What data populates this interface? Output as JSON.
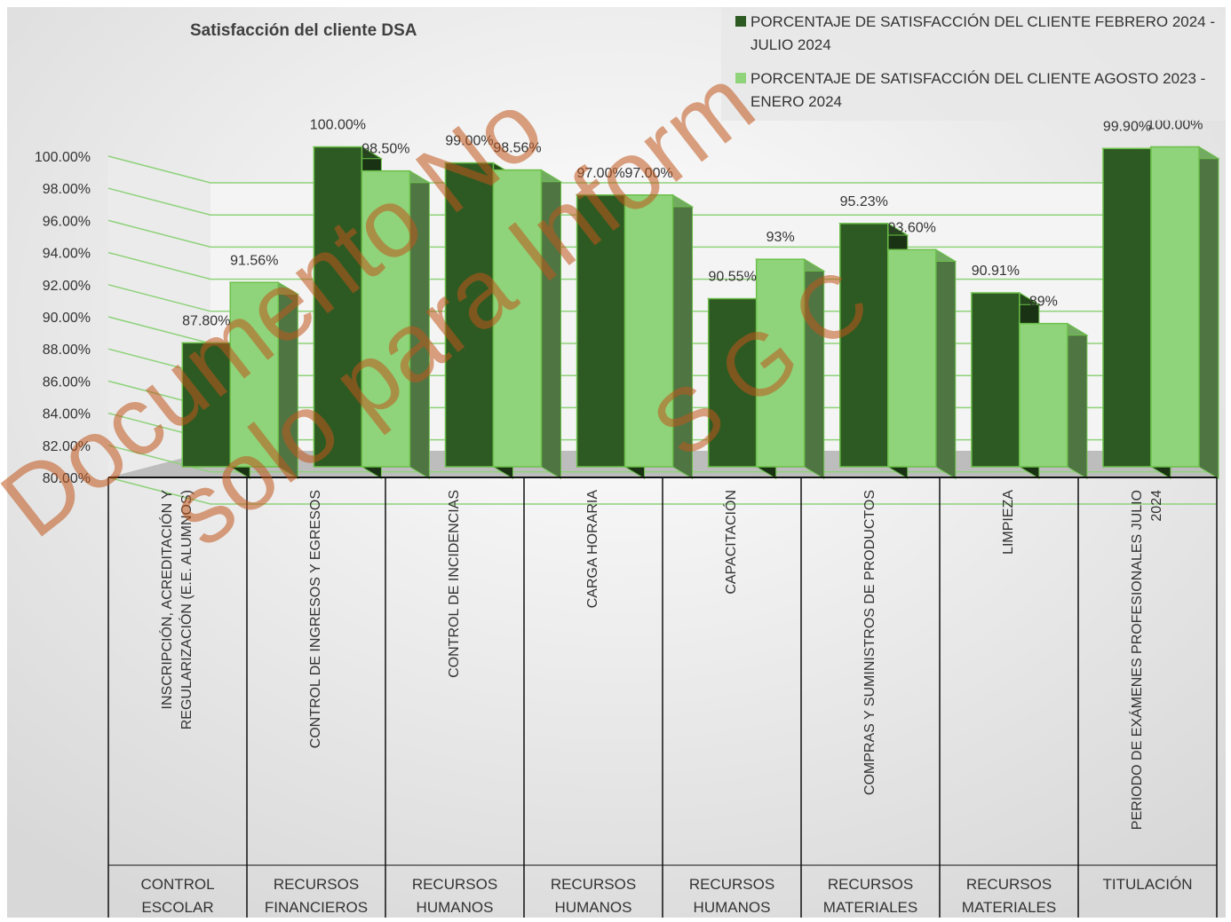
{
  "chart_data": {
    "type": "bar",
    "title": "Satisfacción del cliente DSA",
    "ylim": [
      0.8,
      1.0
    ],
    "yticks": [
      "100.00%",
      "98.00%",
      "96.00%",
      "94.00%",
      "92.00%",
      "90.00%",
      "88.00%",
      "86.00%",
      "84.00%",
      "82.00%",
      "80.00%"
    ],
    "legend_position": "top-right",
    "grid": true,
    "categories": [
      {
        "lines": [
          "INSCRIPCIÓN, ACREDITACIÓN Y",
          "REGULARIZACIÓN (E.E. ALUMNOS)"
        ],
        "group": [
          "CONTROL",
          "ESCOLAR"
        ]
      },
      {
        "lines": [
          "CONTROL DE INGRESOS Y EGRESOS"
        ],
        "group": [
          "RECURSOS",
          "FINANCIEROS"
        ]
      },
      {
        "lines": [
          "CONTROL DE INCIDENCIAS"
        ],
        "group": [
          "RECURSOS",
          "HUMANOS"
        ]
      },
      {
        "lines": [
          "CARGA HORARIA"
        ],
        "group": [
          "RECURSOS",
          "HUMANOS"
        ]
      },
      {
        "lines": [
          "CAPACITACIÓN"
        ],
        "group": [
          "RECURSOS",
          "HUMANOS"
        ]
      },
      {
        "lines": [
          "COMPRAS Y SUMINISTROS DE PRODUCTOS"
        ],
        "group": [
          "RECURSOS",
          "MATERIALES"
        ]
      },
      {
        "lines": [
          "LIMPIEZA"
        ],
        "group": [
          "RECURSOS",
          "MATERIALES"
        ]
      },
      {
        "lines": [
          "PERIODO DE EXÁMENES PROFESIONALES  JULIO",
          "2024"
        ],
        "group": [
          "TITULACIÓN"
        ]
      }
    ],
    "series": [
      {
        "name": "PORCENTAJE DE SATISFACCIÓN DEL CLIENTE FEBRERO 2024 - JULIO 2024",
        "legend_lines": [
          "PORCENTAJE DE SATISFACCIÓN DEL CLIENTE FEBRERO 2024 -",
          "JULIO 2024"
        ],
        "color": "#2d5a22",
        "values": [
          0.878,
          1.0,
          0.99,
          0.97,
          0.9055,
          0.9523,
          0.9091,
          0.999
        ],
        "labels": [
          "87.80%",
          "100.00%",
          "99.00%",
          "97.00%",
          "90.55%",
          "95.23%",
          "90.91%",
          "99.90%"
        ]
      },
      {
        "name": "PORCENTAJE DE SATISFACCIÓN DEL CLIENTE AGOSTO 2023 - ENERO 2024",
        "legend_lines": [
          "PORCENTAJE DE SATISFACCIÓN DEL CLIENTE AGOSTO 2023 -",
          "ENERO 2024"
        ],
        "color": "#8fd47a",
        "values": [
          0.9156,
          0.985,
          0.9856,
          0.97,
          0.93,
          0.936,
          0.89,
          1.0
        ],
        "labels": [
          "91.56%",
          "98.50%",
          "98.56%",
          "97.00%",
          "93%",
          "93.60%",
          "89%",
          "100.00%"
        ]
      }
    ]
  },
  "watermark": [
    "Documento No",
    "solo para Inform",
    "S G C"
  ]
}
